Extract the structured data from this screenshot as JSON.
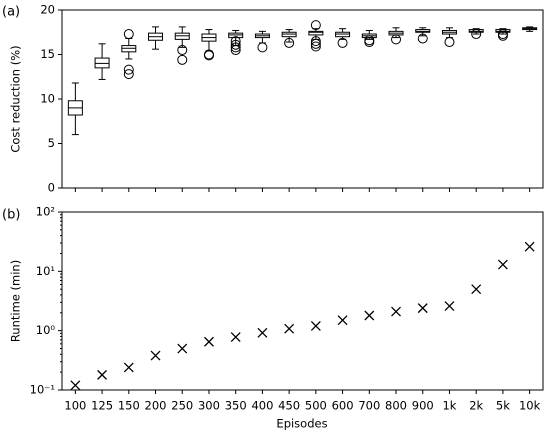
{
  "chart_data": [
    {
      "type": "box",
      "panel_label": "(a)",
      "ylabel": "Cost reduction (%)",
      "ylim": [
        0,
        20
      ],
      "yticks": [
        0,
        5,
        10,
        15,
        20
      ],
      "boxes": [
        {
          "whislo": 6.0,
          "q1": 8.2,
          "med": 9.0,
          "q3": 9.8,
          "whishi": 11.8,
          "fliers": []
        },
        {
          "whislo": 12.2,
          "q1": 13.5,
          "med": 14.0,
          "q3": 14.6,
          "whishi": 16.2,
          "fliers": []
        },
        {
          "whislo": 14.5,
          "q1": 15.3,
          "med": 15.7,
          "q3": 16.0,
          "whishi": 16.8,
          "fliers": [
            13.3,
            12.8,
            17.3
          ]
        },
        {
          "whislo": 15.6,
          "q1": 16.6,
          "med": 17.0,
          "q3": 17.4,
          "whishi": 18.1,
          "fliers": []
        },
        {
          "whislo": 15.8,
          "q1": 16.7,
          "med": 17.1,
          "q3": 17.4,
          "whishi": 18.1,
          "fliers": [
            15.5,
            14.4
          ]
        },
        {
          "whislo": 15.4,
          "q1": 16.5,
          "med": 16.9,
          "q3": 17.3,
          "whishi": 17.8,
          "fliers": [
            15.0,
            14.9
          ]
        },
        {
          "whislo": 16.0,
          "q1": 16.9,
          "med": 17.2,
          "q3": 17.4,
          "whishi": 17.7,
          "fliers": [
            16.5,
            16.1,
            15.8,
            15.5
          ]
        },
        {
          "whislo": 16.3,
          "q1": 16.9,
          "med": 17.1,
          "q3": 17.3,
          "whishi": 17.6,
          "fliers": [
            15.8
          ]
        },
        {
          "whislo": 16.4,
          "q1": 17.0,
          "med": 17.3,
          "q3": 17.5,
          "whishi": 17.8,
          "fliers": [
            16.3
          ]
        },
        {
          "whislo": 16.7,
          "q1": 17.2,
          "med": 17.5,
          "q3": 17.6,
          "whishi": 17.9,
          "fliers": [
            18.3,
            16.5,
            16.2,
            15.9
          ]
        },
        {
          "whislo": 16.7,
          "q1": 17.0,
          "med": 17.3,
          "q3": 17.5,
          "whishi": 17.9,
          "fliers": [
            16.3
          ]
        },
        {
          "whislo": 16.7,
          "q1": 16.9,
          "med": 17.1,
          "q3": 17.3,
          "whishi": 17.7,
          "fliers": [
            16.4,
            16.6
          ]
        },
        {
          "whislo": 16.9,
          "q1": 17.2,
          "med": 17.4,
          "q3": 17.6,
          "whishi": 18.0,
          "fliers": [
            16.7
          ]
        },
        {
          "whislo": 17.1,
          "q1": 17.5,
          "med": 17.6,
          "q3": 17.8,
          "whishi": 18.0,
          "fliers": [
            16.8
          ]
        },
        {
          "whislo": 16.9,
          "q1": 17.3,
          "med": 17.5,
          "q3": 17.7,
          "whishi": 18.0,
          "fliers": [
            16.4
          ]
        },
        {
          "whislo": 17.3,
          "q1": 17.5,
          "med": 17.6,
          "q3": 17.8,
          "whishi": 17.9,
          "fliers": [
            17.3
          ]
        },
        {
          "whislo": 17.3,
          "q1": 17.5,
          "med": 17.6,
          "q3": 17.8,
          "whishi": 17.9,
          "fliers": [
            17.1,
            17.3
          ]
        },
        {
          "whislo": 17.6,
          "q1": 17.8,
          "med": 17.9,
          "q3": 18.0,
          "whishi": 18.1,
          "fliers": []
        }
      ]
    },
    {
      "type": "scatter",
      "panel_label": "(b)",
      "ylabel": "Runtime (min)",
      "xlabel": "Episodes",
      "log_y": true,
      "marker": "x",
      "color": "#000000",
      "categories": [
        "100",
        "125",
        "150",
        "200",
        "250",
        "300",
        "350",
        "400",
        "450",
        "500",
        "600",
        "700",
        "800",
        "900",
        "1k",
        "2k",
        "5k",
        "10k"
      ],
      "values": [
        0.12,
        0.18,
        0.24,
        0.38,
        0.5,
        0.65,
        0.78,
        0.92,
        1.08,
        1.2,
        1.5,
        1.8,
        2.1,
        2.4,
        2.6,
        5,
        13,
        26
      ],
      "ylim": [
        0.1,
        100
      ],
      "yticks": [
        {
          "value": 0.1,
          "label": "10⁻¹"
        },
        {
          "value": 1,
          "label": "10⁰"
        },
        {
          "value": 10,
          "label": "10¹"
        },
        {
          "value": 100,
          "label": "10²"
        }
      ]
    }
  ]
}
